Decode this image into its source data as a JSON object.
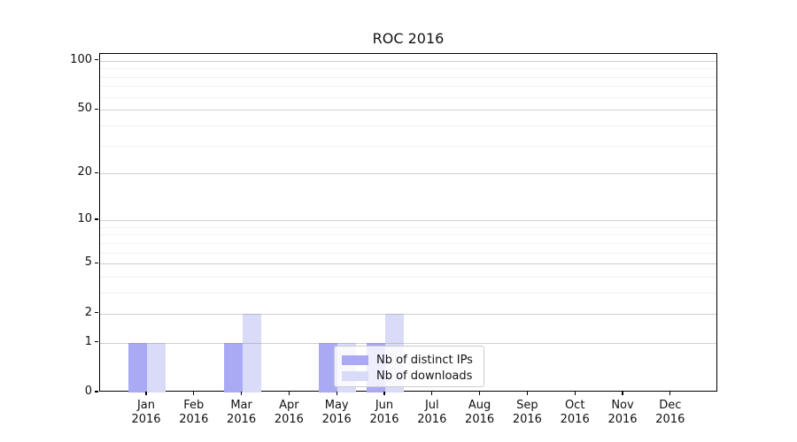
{
  "chart_data": {
    "type": "bar",
    "title": "ROC 2016",
    "categories": [
      "Jan",
      "Feb",
      "Mar",
      "Apr",
      "May",
      "Jun",
      "Jul",
      "Aug",
      "Sep",
      "Oct",
      "Nov",
      "Dec"
    ],
    "year_label": "2016",
    "series": [
      {
        "name": "Nb of distinct IPs",
        "color": "#a9a9f4",
        "values": [
          1,
          0,
          1,
          0,
          1,
          1,
          0,
          0,
          0,
          0,
          0,
          0
        ]
      },
      {
        "name": "Nb of downloads",
        "color": "#dadaf9",
        "values": [
          1,
          0,
          2,
          0,
          1,
          2,
          0,
          0,
          0,
          0,
          0,
          0
        ]
      }
    ],
    "y_axis": {
      "scale": "log1p",
      "ticks": [
        0,
        1,
        2,
        5,
        10,
        20,
        50,
        100
      ],
      "minor_ticks": [
        3,
        4,
        6,
        7,
        8,
        9,
        30,
        40,
        60,
        70,
        80,
        90
      ],
      "ylim": [
        0,
        115
      ]
    },
    "x_axis": {
      "tick_label_lines": [
        "month",
        "year"
      ]
    },
    "grid": {
      "axis": "y",
      "major": true,
      "minor": true
    },
    "legend": {
      "position": "lower-center",
      "background_opacity": 0.8
    }
  }
}
